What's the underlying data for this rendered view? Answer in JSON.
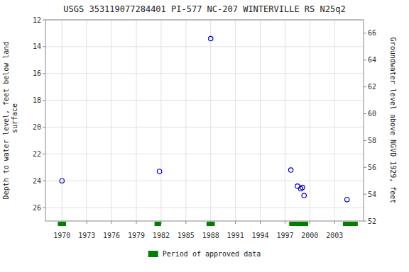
{
  "chart_data": {
    "type": "scatter",
    "title": "USGS 353119077284401 PI-577 NC-207 WINTERVILLE RS N25q2",
    "y_label": "Depth to water level, feet below land\n surface",
    "y2_label": "Groundwater level above NGVD 1929, feet",
    "xlim": [
      1968.0,
      2006.5
    ],
    "xticks": [
      1970,
      1973,
      1976,
      1979,
      1982,
      1985,
      1988,
      1991,
      1994,
      1997,
      2000,
      2003
    ],
    "ylim": [
      27.0,
      12.0
    ],
    "yticks": [
      12,
      14,
      16,
      18,
      20,
      22,
      24,
      26
    ],
    "y2lim": [
      52.0,
      67.0
    ],
    "y2ticks": [
      52,
      54,
      56,
      58,
      60,
      62,
      64,
      66
    ],
    "grid": true,
    "legend": "bottom",
    "series": [
      {
        "type": "scatter",
        "marker": "open-circle",
        "color": "#0000CC",
        "x": [
          1970.0,
          1981.8,
          1988.0,
          1997.7,
          1998.5,
          1998.9,
          1999.1,
          1999.3,
          2004.5
        ],
        "values": [
          24.0,
          23.3,
          13.4,
          23.2,
          24.4,
          24.6,
          24.5,
          25.1,
          25.4
        ]
      },
      {
        "type": "span",
        "name": "Period of approved data",
        "color": "#008000",
        "values": [
          [
            1969.5,
            1970.5
          ],
          [
            1981.2,
            1982.0
          ],
          [
            1987.5,
            1988.5
          ],
          [
            1997.5,
            1999.8
          ],
          [
            2004.0,
            2005.8
          ]
        ]
      }
    ]
  }
}
